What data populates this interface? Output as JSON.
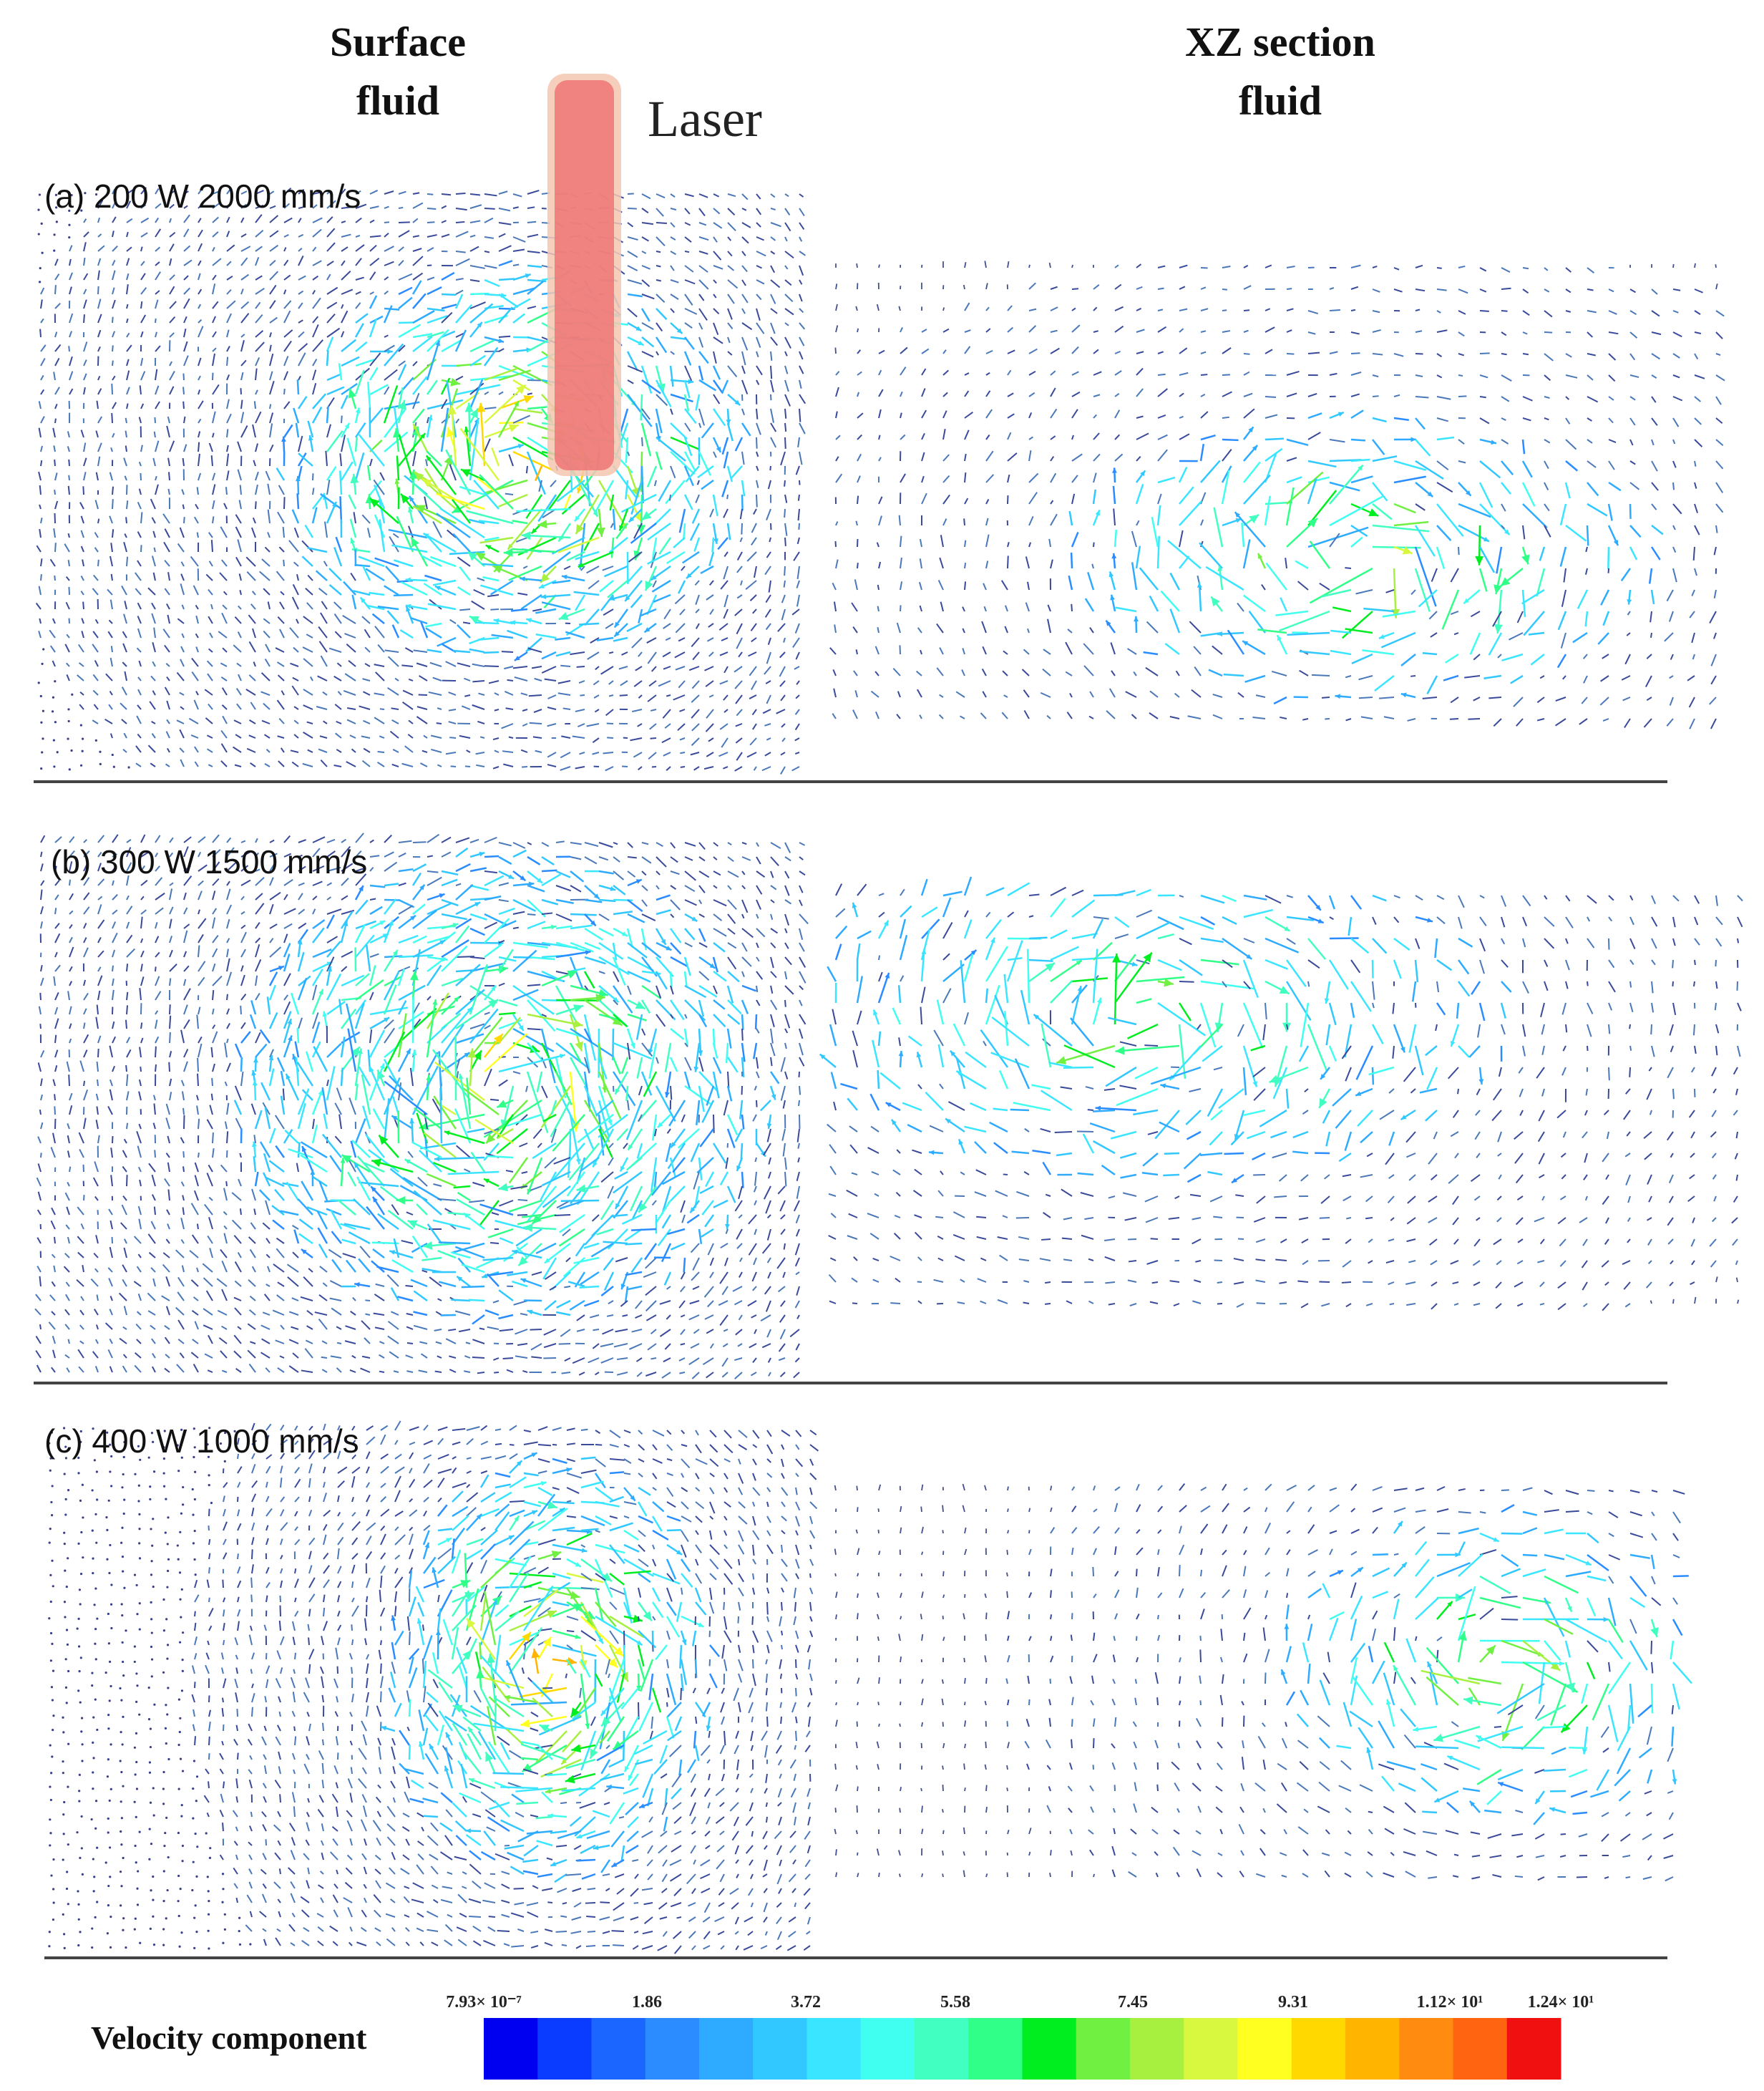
{
  "columns": [
    {
      "lines": [
        "Surface",
        "fluid"
      ]
    },
    {
      "lines": [
        "XZ section",
        "fluid"
      ]
    }
  ],
  "laser_label": "Laser",
  "rows": [
    {
      "label": "(a) 200 W 2000 mm/s"
    },
    {
      "label": "(b) 300 W 1500 mm/s"
    },
    {
      "label": "(c) 400 W 1000 mm/s"
    }
  ],
  "legend": {
    "title": "Velocity component",
    "ticks": [
      "7.93× 10⁻⁷",
      "1.86",
      "3.72",
      "5.58",
      "7.45",
      "9.31",
      "1.12× 10¹",
      "1.24× 10¹"
    ]
  }
}
